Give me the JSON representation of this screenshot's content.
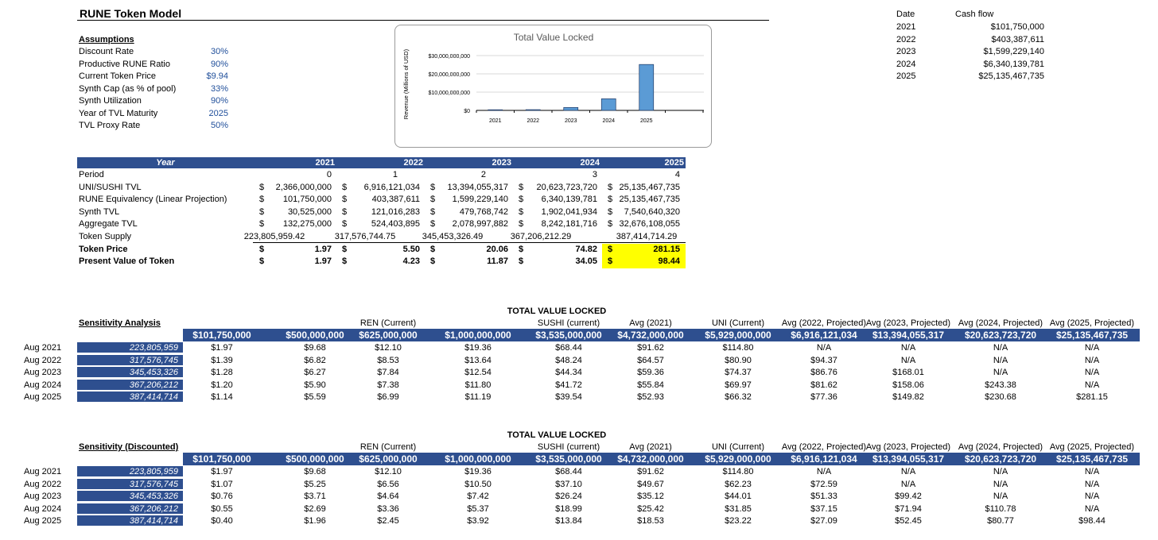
{
  "title": "RUNE Token Model",
  "assumptions": {
    "heading": "Assumptions",
    "items": [
      {
        "label": "Discount Rate",
        "value": "30%"
      },
      {
        "label": "Productive RUNE Ratio",
        "value": "90%"
      },
      {
        "label": "Current Token Price",
        "value": "$9.94"
      },
      {
        "label": "Synth Cap (as % of pool)",
        "value": "33%"
      },
      {
        "label": "Synth Utilization",
        "value": "90%"
      },
      {
        "label": "Year of TVL Maturity",
        "value": "2025"
      },
      {
        "label": "TVL Proxy Rate",
        "value": "50%"
      }
    ]
  },
  "chart_data": {
    "type": "bar",
    "title": "Total Value Locked",
    "ylabel": "Revenue (Millions of USD)",
    "xlabel": "",
    "categories": [
      "2021",
      "2022",
      "2023",
      "2024",
      "2025"
    ],
    "values": [
      101750000,
      403387611,
      1599229140,
      6340139781,
      25135467735
    ],
    "ylim": [
      0,
      30000000000
    ],
    "yticks": [
      "$0",
      "$10,000,000,000",
      "$20,000,000,000",
      "$30,000,000,000"
    ],
    "grid": true,
    "bar_color": "#5b9bd5"
  },
  "cashflow": {
    "date_header": "Date",
    "cf_header": "Cash flow",
    "rows": [
      {
        "date": "2021",
        "value": "$101,750,000"
      },
      {
        "date": "2022",
        "value": "$403,387,611"
      },
      {
        "date": "2023",
        "value": "$1,599,229,140"
      },
      {
        "date": "2024",
        "value": "$6,340,139,781"
      },
      {
        "date": "2025",
        "value": "$25,135,467,735"
      }
    ]
  },
  "yeartable": {
    "header_label": "Year",
    "years": [
      "2021",
      "2022",
      "2023",
      "2024",
      "2025"
    ],
    "rows": [
      {
        "label": "Period",
        "dollar": false,
        "values": [
          "0",
          "1",
          "2",
          "3",
          "4"
        ]
      },
      {
        "label": "UNI/SUSHI TVL",
        "dollar": true,
        "values": [
          "2,366,000,000",
          "6,916,121,034",
          "13,394,055,317",
          "20,623,723,720",
          "25,135,467,735"
        ]
      },
      {
        "label": "RUNE Equivalency (Linear Projection)",
        "dollar": true,
        "values": [
          "101,750,000",
          "403,387,611",
          "1,599,229,140",
          "6,340,139,781",
          "25,135,467,735"
        ]
      },
      {
        "label": "Synth TVL",
        "dollar": true,
        "values": [
          "30,525,000",
          "121,016,283",
          "479,768,742",
          "1,902,041,934",
          "7,540,640,320"
        ]
      },
      {
        "label": "Aggregate TVL",
        "dollar": true,
        "values": [
          "132,275,000",
          "524,403,895",
          "2,078,997,882",
          "8,242,181,716",
          "32,676,108,055"
        ]
      },
      {
        "label": "Token Supply",
        "dollar": false,
        "values": [
          "223,805,959.42",
          "317,576,744.75",
          "345,453,326.49",
          "367,206,212.29",
          "387,414,714.29"
        ]
      },
      {
        "label": "Token Price",
        "dollar": true,
        "bold": true,
        "values": [
          "1.97",
          "5.50",
          "20.06",
          "74.82",
          "281.15"
        ]
      },
      {
        "label": "Present Value of Token",
        "dollar": true,
        "bold": true,
        "values": [
          "1.97",
          "4.23",
          "11.87",
          "34.05",
          "98.44"
        ]
      }
    ]
  },
  "sensitivity": {
    "title": "TOTAL VALUE LOCKED",
    "label": "Sensitivity Analysis",
    "col_labels": [
      "",
      "",
      "REN (Current)",
      "",
      "SUSHI (current)",
      "Avg (2021)",
      "UNI (Current)",
      "Avg (2022, Projected)",
      "Avg (2023, Projected)",
      "Avg (2024, Projected)",
      "Avg (2025, Projected)"
    ],
    "col_values": [
      "$101,750,000",
      "$500,000,000",
      "$625,000,000",
      "$1,000,000,000",
      "$3,535,000,000",
      "$4,732,000,000",
      "$5,929,000,000",
      "$6,916,121,034",
      "$13,394,055,317",
      "$20,623,723,720",
      "$25,135,467,735"
    ],
    "rows": [
      {
        "date": "Aug 2021",
        "supply": "223,805,959",
        "values": [
          "$1.97",
          "$9.68",
          "$12.10",
          "$19.36",
          "$68.44",
          "$91.62",
          "$114.80",
          "N/A",
          "N/A",
          "N/A",
          "N/A"
        ]
      },
      {
        "date": "Aug 2022",
        "supply": "317,576,745",
        "values": [
          "$1.39",
          "$6.82",
          "$8.53",
          "$13.64",
          "$48.24",
          "$64.57",
          "$80.90",
          "$94.37",
          "N/A",
          "N/A",
          "N/A"
        ]
      },
      {
        "date": "Aug 2023",
        "supply": "345,453,326",
        "values": [
          "$1.28",
          "$6.27",
          "$7.84",
          "$12.54",
          "$44.34",
          "$59.36",
          "$74.37",
          "$86.76",
          "$168.01",
          "N/A",
          "N/A"
        ]
      },
      {
        "date": "Aug 2024",
        "supply": "367,206,212",
        "values": [
          "$1.20",
          "$5.90",
          "$7.38",
          "$11.80",
          "$41.72",
          "$55.84",
          "$69.97",
          "$81.62",
          "$158.06",
          "$243.38",
          "N/A"
        ]
      },
      {
        "date": "Aug 2025",
        "supply": "387,414,714",
        "values": [
          "$1.14",
          "$5.59",
          "$6.99",
          "$11.19",
          "$39.54",
          "$52.93",
          "$66.32",
          "$77.36",
          "$149.82",
          "$230.68",
          "$281.15"
        ]
      }
    ]
  },
  "sensitivity_disc": {
    "title": "TOTAL VALUE LOCKED",
    "label": "Sensitivity (Discounted)",
    "col_labels": [
      "",
      "",
      "REN (Current)",
      "",
      "SUSHI (current)",
      "Avg (2021)",
      "UNI (Current)",
      "Avg (2022, Projected)",
      "Avg (2023, Projected)",
      "Avg (2024, Projected)",
      "Avg (2025, Projected)"
    ],
    "col_values": [
      "$101,750,000",
      "$500,000,000",
      "$625,000,000",
      "$1,000,000,000",
      "$3,535,000,000",
      "$4,732,000,000",
      "$5,929,000,000",
      "$6,916,121,034",
      "$13,394,055,317",
      "$20,623,723,720",
      "$25,135,467,735"
    ],
    "rows": [
      {
        "date": "Aug 2021",
        "supply": "223,805,959",
        "values": [
          "$1.97",
          "$9.68",
          "$12.10",
          "$19.36",
          "$68.44",
          "$91.62",
          "$114.80",
          "N/A",
          "N/A",
          "N/A",
          "N/A"
        ]
      },
      {
        "date": "Aug 2022",
        "supply": "317,576,745",
        "values": [
          "$1.07",
          "$5.25",
          "$6.56",
          "$10.50",
          "$37.10",
          "$49.67",
          "$62.23",
          "$72.59",
          "N/A",
          "N/A",
          "N/A"
        ]
      },
      {
        "date": "Aug 2023",
        "supply": "345,453,326",
        "values": [
          "$0.76",
          "$3.71",
          "$4.64",
          "$7.42",
          "$26.24",
          "$35.12",
          "$44.01",
          "$51.33",
          "$99.42",
          "N/A",
          "N/A"
        ]
      },
      {
        "date": "Aug 2024",
        "supply": "367,206,212",
        "values": [
          "$0.55",
          "$2.69",
          "$3.36",
          "$5.37",
          "$18.99",
          "$25.42",
          "$31.85",
          "$37.15",
          "$71.94",
          "$110.78",
          "N/A"
        ]
      },
      {
        "date": "Aug 2025",
        "supply": "387,414,714",
        "values": [
          "$0.40",
          "$1.96",
          "$2.45",
          "$3.92",
          "$13.84",
          "$18.53",
          "$23.22",
          "$27.09",
          "$52.45",
          "$80.77",
          "$98.44"
        ]
      }
    ]
  }
}
